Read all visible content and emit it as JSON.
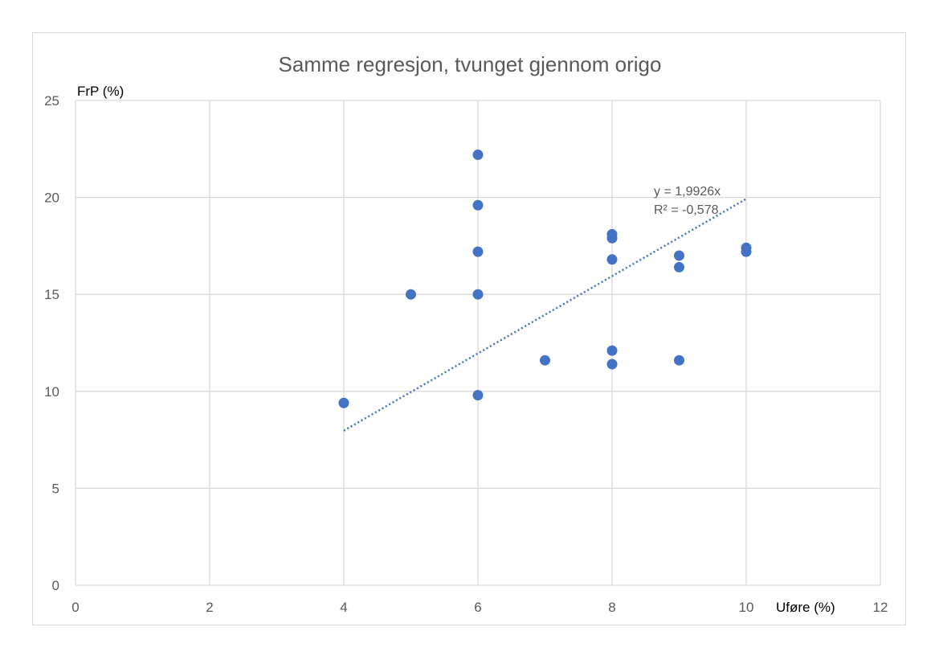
{
  "chart_data": {
    "type": "scatter",
    "title": "Samme regresjon, tvunget gjennom origo",
    "xlabel": "Uføre (%)",
    "ylabel": "FrP (%)",
    "xlim": [
      0,
      12
    ],
    "ylim": [
      0,
      25
    ],
    "x_ticks": [
      0,
      2,
      4,
      6,
      8,
      10,
      12
    ],
    "y_ticks": [
      0,
      5,
      10,
      15,
      20,
      25
    ],
    "grid": true,
    "colors": {
      "points": "#4472c4",
      "trendline": "#4472c4",
      "grid": "#d9d9d9"
    },
    "points": [
      {
        "x": 4,
        "y": 9.4
      },
      {
        "x": 5,
        "y": 15.0
      },
      {
        "x": 6,
        "y": 22.2
      },
      {
        "x": 6,
        "y": 19.6
      },
      {
        "x": 6,
        "y": 17.2
      },
      {
        "x": 6,
        "y": 15.0
      },
      {
        "x": 6,
        "y": 9.8
      },
      {
        "x": 7,
        "y": 11.6
      },
      {
        "x": 8,
        "y": 18.1
      },
      {
        "x": 8,
        "y": 17.9
      },
      {
        "x": 8,
        "y": 16.8
      },
      {
        "x": 8,
        "y": 12.1
      },
      {
        "x": 8,
        "y": 11.4
      },
      {
        "x": 9,
        "y": 17.0
      },
      {
        "x": 9,
        "y": 16.4
      },
      {
        "x": 9,
        "y": 11.6
      },
      {
        "x": 10,
        "y": 17.4
      },
      {
        "x": 10,
        "y": 17.2
      }
    ],
    "trendline": {
      "type": "linear-through-origin",
      "slope": 1.9926,
      "x_range": [
        4,
        10
      ],
      "equation": "y = 1,9926x",
      "r_squared": "R² = -0,578"
    }
  }
}
